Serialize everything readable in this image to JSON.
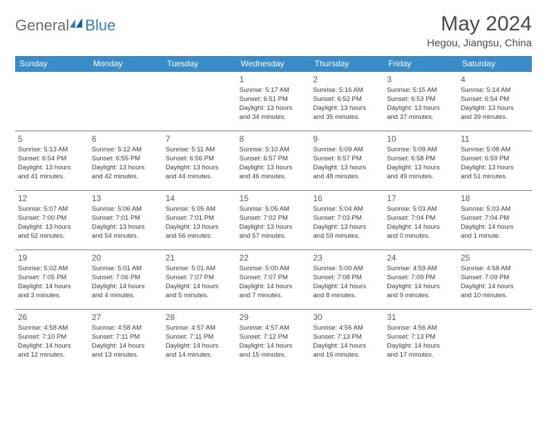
{
  "brand": {
    "part1": "General",
    "part2": "Blue"
  },
  "title": "May 2024",
  "location": "Hegou, Jiangsu, China",
  "colors": {
    "header_bg": "#3a8cc9",
    "header_text": "#ffffff",
    "brand_gray": "#6b6b6b",
    "brand_blue": "#2f7fbf",
    "text": "#3a3a3a",
    "title_text": "#4a4a4a"
  },
  "day_headers": [
    "Sunday",
    "Monday",
    "Tuesday",
    "Wednesday",
    "Thursday",
    "Friday",
    "Saturday"
  ],
  "weeks": [
    [
      null,
      null,
      null,
      {
        "n": "1",
        "sr": "Sunrise: 5:17 AM",
        "ss": "Sunset: 6:51 PM",
        "d1": "Daylight: 13 hours",
        "d2": "and 34 minutes."
      },
      {
        "n": "2",
        "sr": "Sunrise: 5:16 AM",
        "ss": "Sunset: 6:52 PM",
        "d1": "Daylight: 13 hours",
        "d2": "and 35 minutes."
      },
      {
        "n": "3",
        "sr": "Sunrise: 5:15 AM",
        "ss": "Sunset: 6:53 PM",
        "d1": "Daylight: 13 hours",
        "d2": "and 37 minutes."
      },
      {
        "n": "4",
        "sr": "Sunrise: 5:14 AM",
        "ss": "Sunset: 6:54 PM",
        "d1": "Daylight: 13 hours",
        "d2": "and 39 minutes."
      }
    ],
    [
      {
        "n": "5",
        "sr": "Sunrise: 5:13 AM",
        "ss": "Sunset: 6:54 PM",
        "d1": "Daylight: 13 hours",
        "d2": "and 41 minutes."
      },
      {
        "n": "6",
        "sr": "Sunrise: 5:12 AM",
        "ss": "Sunset: 6:55 PM",
        "d1": "Daylight: 13 hours",
        "d2": "and 42 minutes."
      },
      {
        "n": "7",
        "sr": "Sunrise: 5:11 AM",
        "ss": "Sunset: 6:56 PM",
        "d1": "Daylight: 13 hours",
        "d2": "and 44 minutes."
      },
      {
        "n": "8",
        "sr": "Sunrise: 5:10 AM",
        "ss": "Sunset: 6:57 PM",
        "d1": "Daylight: 13 hours",
        "d2": "and 46 minutes."
      },
      {
        "n": "9",
        "sr": "Sunrise: 5:09 AM",
        "ss": "Sunset: 6:57 PM",
        "d1": "Daylight: 13 hours",
        "d2": "and 48 minutes."
      },
      {
        "n": "10",
        "sr": "Sunrise: 5:09 AM",
        "ss": "Sunset: 6:58 PM",
        "d1": "Daylight: 13 hours",
        "d2": "and 49 minutes."
      },
      {
        "n": "11",
        "sr": "Sunrise: 5:08 AM",
        "ss": "Sunset: 6:59 PM",
        "d1": "Daylight: 13 hours",
        "d2": "and 51 minutes."
      }
    ],
    [
      {
        "n": "12",
        "sr": "Sunrise: 5:07 AM",
        "ss": "Sunset: 7:00 PM",
        "d1": "Daylight: 13 hours",
        "d2": "and 52 minutes."
      },
      {
        "n": "13",
        "sr": "Sunrise: 5:06 AM",
        "ss": "Sunset: 7:01 PM",
        "d1": "Daylight: 13 hours",
        "d2": "and 54 minutes."
      },
      {
        "n": "14",
        "sr": "Sunrise: 5:05 AM",
        "ss": "Sunset: 7:01 PM",
        "d1": "Daylight: 13 hours",
        "d2": "and 56 minutes."
      },
      {
        "n": "15",
        "sr": "Sunrise: 5:05 AM",
        "ss": "Sunset: 7:02 PM",
        "d1": "Daylight: 13 hours",
        "d2": "and 57 minutes."
      },
      {
        "n": "16",
        "sr": "Sunrise: 5:04 AM",
        "ss": "Sunset: 7:03 PM",
        "d1": "Daylight: 13 hours",
        "d2": "and 59 minutes."
      },
      {
        "n": "17",
        "sr": "Sunrise: 5:03 AM",
        "ss": "Sunset: 7:04 PM",
        "d1": "Daylight: 14 hours",
        "d2": "and 0 minutes."
      },
      {
        "n": "18",
        "sr": "Sunrise: 5:03 AM",
        "ss": "Sunset: 7:04 PM",
        "d1": "Daylight: 14 hours",
        "d2": "and 1 minute."
      }
    ],
    [
      {
        "n": "19",
        "sr": "Sunrise: 5:02 AM",
        "ss": "Sunset: 7:05 PM",
        "d1": "Daylight: 14 hours",
        "d2": "and 3 minutes."
      },
      {
        "n": "20",
        "sr": "Sunrise: 5:01 AM",
        "ss": "Sunset: 7:06 PM",
        "d1": "Daylight: 14 hours",
        "d2": "and 4 minutes."
      },
      {
        "n": "21",
        "sr": "Sunrise: 5:01 AM",
        "ss": "Sunset: 7:07 PM",
        "d1": "Daylight: 14 hours",
        "d2": "and 5 minutes."
      },
      {
        "n": "22",
        "sr": "Sunrise: 5:00 AM",
        "ss": "Sunset: 7:07 PM",
        "d1": "Daylight: 14 hours",
        "d2": "and 7 minutes."
      },
      {
        "n": "23",
        "sr": "Sunrise: 5:00 AM",
        "ss": "Sunset: 7:08 PM",
        "d1": "Daylight: 14 hours",
        "d2": "and 8 minutes."
      },
      {
        "n": "24",
        "sr": "Sunrise: 4:59 AM",
        "ss": "Sunset: 7:09 PM",
        "d1": "Daylight: 14 hours",
        "d2": "and 9 minutes."
      },
      {
        "n": "25",
        "sr": "Sunrise: 4:58 AM",
        "ss": "Sunset: 7:09 PM",
        "d1": "Daylight: 14 hours",
        "d2": "and 10 minutes."
      }
    ],
    [
      {
        "n": "26",
        "sr": "Sunrise: 4:58 AM",
        "ss": "Sunset: 7:10 PM",
        "d1": "Daylight: 14 hours",
        "d2": "and 12 minutes."
      },
      {
        "n": "27",
        "sr": "Sunrise: 4:58 AM",
        "ss": "Sunset: 7:11 PM",
        "d1": "Daylight: 14 hours",
        "d2": "and 13 minutes."
      },
      {
        "n": "28",
        "sr": "Sunrise: 4:57 AM",
        "ss": "Sunset: 7:11 PM",
        "d1": "Daylight: 14 hours",
        "d2": "and 14 minutes."
      },
      {
        "n": "29",
        "sr": "Sunrise: 4:57 AM",
        "ss": "Sunset: 7:12 PM",
        "d1": "Daylight: 14 hours",
        "d2": "and 15 minutes."
      },
      {
        "n": "30",
        "sr": "Sunrise: 4:56 AM",
        "ss": "Sunset: 7:13 PM",
        "d1": "Daylight: 14 hours",
        "d2": "and 16 minutes."
      },
      {
        "n": "31",
        "sr": "Sunrise: 4:56 AM",
        "ss": "Sunset: 7:13 PM",
        "d1": "Daylight: 14 hours",
        "d2": "and 17 minutes."
      },
      null
    ]
  ]
}
